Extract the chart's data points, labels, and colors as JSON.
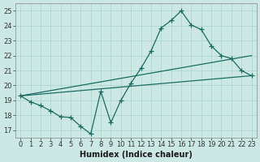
{
  "xlabel": "Humidex (Indice chaleur)",
  "xlim": [
    -0.5,
    23.5
  ],
  "ylim": [
    16.5,
    25.5
  ],
  "xticks": [
    0,
    1,
    2,
    3,
    4,
    5,
    6,
    7,
    8,
    9,
    10,
    11,
    12,
    13,
    14,
    15,
    16,
    17,
    18,
    19,
    20,
    21,
    22,
    23
  ],
  "yticks": [
    17,
    18,
    19,
    20,
    21,
    22,
    23,
    24,
    25
  ],
  "bg_color": "#cce8e4",
  "grid_color": "#aad4cc",
  "line_color": "#1a6b60",
  "line1_x": [
    0,
    1,
    2,
    3,
    4,
    5,
    6,
    7,
    8,
    9,
    10,
    11,
    12,
    13,
    14,
    15,
    16,
    17,
    18,
    19,
    20,
    21,
    22,
    23
  ],
  "line1_y": [
    19.3,
    18.9,
    18.65,
    18.3,
    17.9,
    17.85,
    17.25,
    16.75,
    19.6,
    17.5,
    19.0,
    20.15,
    21.15,
    22.3,
    23.85,
    24.35,
    25.0,
    24.05,
    23.75,
    22.65,
    22.0,
    21.8,
    21.0,
    20.65
  ],
  "line2_x": [
    0,
    23
  ],
  "line2_y": [
    19.3,
    22.0
  ],
  "line3_x": [
    0,
    23
  ],
  "line3_y": [
    19.3,
    20.65
  ],
  "marker": "+",
  "marker_size": 4,
  "font_size": 7
}
